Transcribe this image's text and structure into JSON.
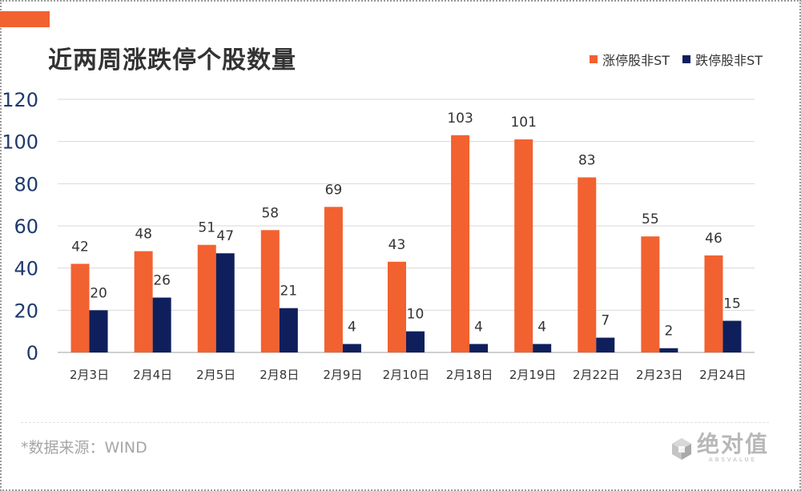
{
  "colors": {
    "accent": "#f26130",
    "series1": "#f26130",
    "series2": "#0f1f5c",
    "grid": "#d9d9d9",
    "tick_text": "#1f3a6b"
  },
  "title": "近两周涨跌停个股数量",
  "source": "*数据来源：WIND",
  "logo": {
    "text": "绝对值",
    "subtext": "ABSVALUE",
    "icon": "cube-icon"
  },
  "chart_data": {
    "type": "bar",
    "title": "近两周涨跌停个股数量",
    "xlabel": "",
    "ylabel": "",
    "ylim": [
      0,
      120
    ],
    "yticks": [
      0,
      20,
      40,
      60,
      80,
      100,
      120
    ],
    "grid": true,
    "legend_position": "top-right",
    "categories": [
      "2月3日",
      "2月4日",
      "2月5日",
      "2月8日",
      "2月9日",
      "2月10日",
      "2月18日",
      "2月19日",
      "2月22日",
      "2月23日",
      "2月24日"
    ],
    "series": [
      {
        "name": "涨停股非ST",
        "color": "#f26130",
        "values": [
          42,
          48,
          51,
          58,
          69,
          43,
          103,
          101,
          83,
          55,
          46
        ]
      },
      {
        "name": "跌停股非ST",
        "color": "#0f1f5c",
        "values": [
          20,
          26,
          47,
          21,
          4,
          10,
          4,
          4,
          7,
          2,
          15
        ]
      }
    ]
  }
}
